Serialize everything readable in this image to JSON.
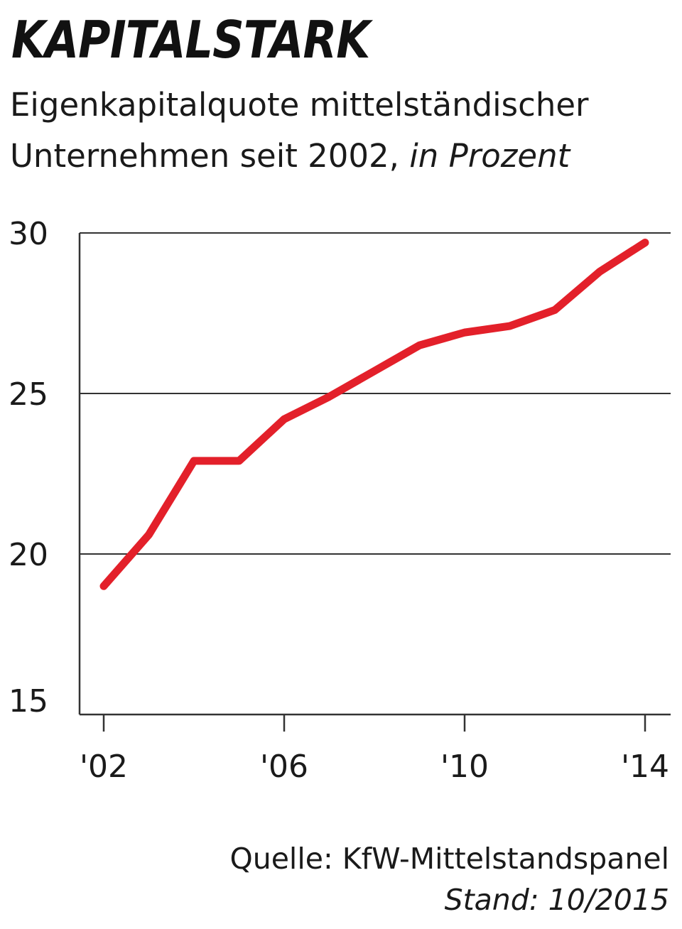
{
  "header": {
    "title": "KAPITALSTARK",
    "subtitle_line1": "Eigenkapitalquote mittelständischer",
    "subtitle_line2": "Unternehmen seit 2002,",
    "subtitle_unit": "in Prozent"
  },
  "footer": {
    "source": "Quelle: KfW-Mittelstandspanel",
    "stand": "Stand: 10/2015"
  },
  "chart_data": {
    "type": "line",
    "title": "KAPITALSTARK",
    "subtitle": "Eigenkapitalquote mittelständischer Unternehmen seit 2002, in Prozent",
    "x": [
      2002,
      2003,
      2004,
      2005,
      2006,
      2007,
      2008,
      2009,
      2010,
      2011,
      2012,
      2013,
      2014
    ],
    "series": [
      {
        "values": [
          19.0,
          20.6,
          22.9,
          22.9,
          24.2,
          24.9,
          25.7,
          26.5,
          26.9,
          27.1,
          27.6,
          28.8,
          29.7
        ],
        "color": "#e3202a"
      }
    ],
    "xticks": [
      2002,
      2006,
      2010,
      2014
    ],
    "xtick_labels": [
      "'02",
      "'06",
      "'10",
      "'14"
    ],
    "yticks": [
      15,
      20,
      25,
      30
    ],
    "ytick_labels": [
      "15",
      "20",
      "25",
      "30"
    ],
    "xlim": [
      2001.5,
      2014.5
    ],
    "ylim": [
      15,
      30
    ],
    "grid": "horizontal",
    "legend": "none",
    "colors": {
      "line": "#e3202a",
      "axis": "#333333",
      "grid": "#333333",
      "text": "#1a1a1a"
    }
  }
}
